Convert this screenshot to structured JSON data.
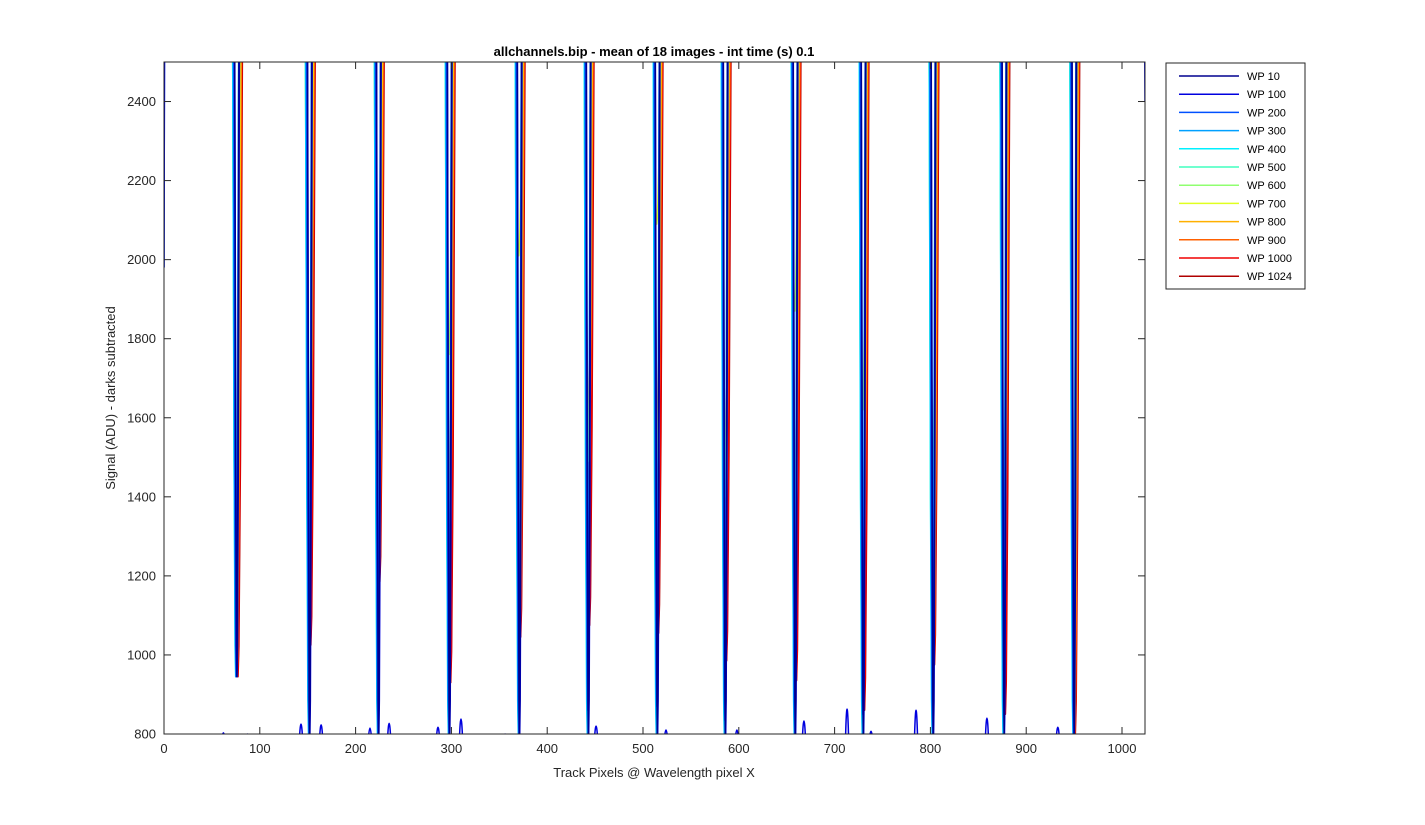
{
  "chart_data": {
    "type": "line",
    "title": "allchannels.bip - mean of 18 images - int time (s) 0.1",
    "xlabel": "Track Pixels @ Wavelength pixel X",
    "ylabel": "Signal (ADU) - darks subtracted",
    "xlim": [
      0,
      1024
    ],
    "ylim": [
      800,
      2500
    ],
    "xticks": [
      0,
      100,
      200,
      300,
      400,
      500,
      600,
      700,
      800,
      900,
      1000
    ],
    "yticks": [
      800,
      1000,
      1200,
      1400,
      1600,
      1800,
      2000,
      2200,
      2400
    ],
    "grid": false,
    "legend_position": "outside-top-right",
    "gaps": [
      {
        "x": 76,
        "minima": [
          945,
          945,
          945,
          945,
          945,
          945,
          945,
          945,
          945,
          1230,
          945,
          945
        ]
      },
      {
        "x": 152,
        "minima": [
          800,
          800,
          800,
          800,
          800,
          930,
          800,
          1040,
          1380,
          1380,
          1025,
          1025
        ]
      },
      {
        "x": 224,
        "minima": [
          800,
          800,
          800,
          800,
          800,
          800,
          800,
          1570,
          1185,
          1185,
          1185,
          1185
        ]
      },
      {
        "x": 298,
        "minima": [
          800,
          800,
          800,
          800,
          800,
          800,
          800,
          1760,
          1280,
          1280,
          930,
          930
        ]
      },
      {
        "x": 371,
        "minima": [
          800,
          800,
          800,
          800,
          800,
          800,
          800,
          2010,
          1045,
          1045,
          1045,
          1045
        ]
      },
      {
        "x": 443,
        "minima": [
          800,
          800,
          860,
          800,
          800,
          800,
          800,
          1490,
          1490,
          1490,
          1075,
          1075
        ]
      },
      {
        "x": 515,
        "minima": [
          800,
          800,
          870,
          800,
          800,
          800,
          800,
          2090,
          1500,
          1500,
          1055,
          1055
        ]
      },
      {
        "x": 586,
        "minima": [
          800,
          800,
          835,
          800,
          800,
          800,
          800,
          1400,
          1400,
          1400,
          985,
          985
        ]
      },
      {
        "x": 659,
        "minima": [
          800,
          800,
          800,
          800,
          800,
          800,
          800,
          1870,
          1320,
          1320,
          935,
          935
        ]
      },
      {
        "x": 730,
        "minima": [
          800,
          800,
          850,
          800,
          800,
          800,
          800,
          1620,
          1165,
          1165,
          860,
          860
        ]
      },
      {
        "x": 803,
        "minima": [
          800,
          800,
          800,
          800,
          800,
          800,
          800,
          1380,
          975,
          975,
          975,
          975
        ]
      },
      {
        "x": 877,
        "minima": [
          800,
          800,
          960,
          800,
          800,
          800,
          800,
          1370,
          1170,
          1170,
          850,
          850
        ]
      },
      {
        "x": 950,
        "minima": [
          800,
          800,
          800,
          800,
          800,
          800,
          1200,
          1450,
          800,
          800,
          800,
          800
        ]
      }
    ],
    "bumps": [
      {
        "x": 62,
        "y": 808
      },
      {
        "x": 87,
        "y": 805
      },
      {
        "x": 143,
        "y": 830
      },
      {
        "x": 164,
        "y": 828
      },
      {
        "x": 215,
        "y": 820
      },
      {
        "x": 235,
        "y": 832
      },
      {
        "x": 286,
        "y": 822
      },
      {
        "x": 310,
        "y": 843
      },
      {
        "x": 356,
        "y": 805
      },
      {
        "x": 451,
        "y": 825
      },
      {
        "x": 524,
        "y": 815
      },
      {
        "x": 598,
        "y": 815
      },
      {
        "x": 668,
        "y": 838
      },
      {
        "x": 713,
        "y": 868
      },
      {
        "x": 738,
        "y": 812
      },
      {
        "x": 785,
        "y": 865
      },
      {
        "x": 859,
        "y": 845
      },
      {
        "x": 933,
        "y": 822
      }
    ],
    "series": [
      {
        "name": "WP 10",
        "color": "#00008f"
      },
      {
        "name": "WP 100",
        "color": "#0000df"
      },
      {
        "name": "WP 200",
        "color": "#0050ff"
      },
      {
        "name": "WP 300",
        "color": "#00a0ff"
      },
      {
        "name": "WP 400",
        "color": "#00f0ff"
      },
      {
        "name": "WP 500",
        "color": "#40ffbf"
      },
      {
        "name": "WP 600",
        "color": "#90ff70"
      },
      {
        "name": "WP 700",
        "color": "#e0ff20"
      },
      {
        "name": "WP 800",
        "color": "#ffb000"
      },
      {
        "name": "WP 900",
        "color": "#ff6000"
      },
      {
        "name": "WP 1000",
        "color": "#f00000"
      },
      {
        "name": "WP 1024",
        "color": "#b00000"
      }
    ]
  }
}
